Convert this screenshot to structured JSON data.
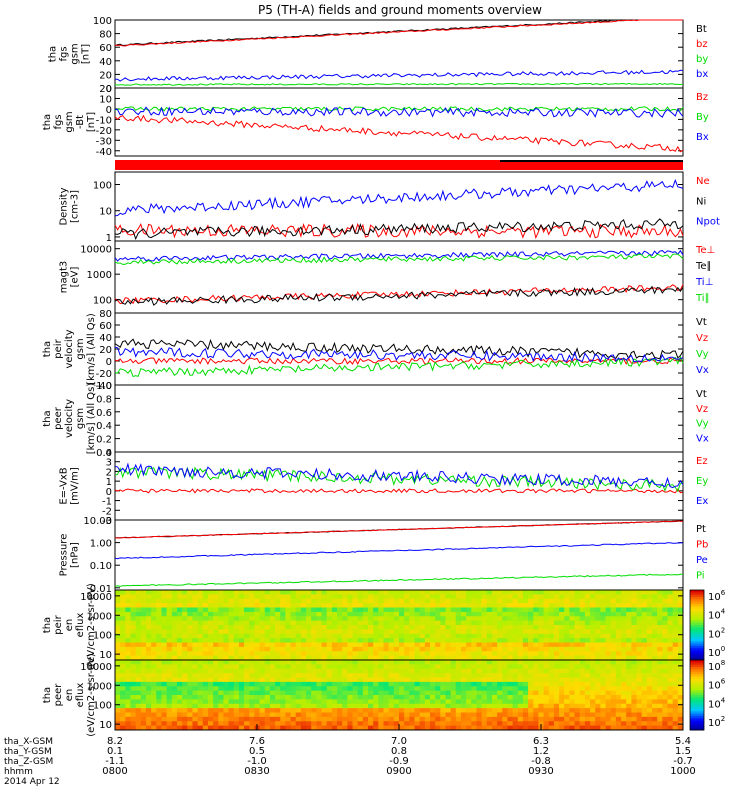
{
  "title": "P5 (TH-A) fields and ground moments overview",
  "colors": {
    "black": "#000000",
    "red": "#ff0000",
    "green": "#00dd00",
    "blue": "#0000ff"
  },
  "chart_data": {
    "type": "line",
    "xaxis": {
      "rows": [
        {
          "label": "tha_X-GSM",
          "values": [
            "8.2",
            "7.6",
            "7.0",
            "6.3",
            "5.4"
          ]
        },
        {
          "label": "tha_Y-GSM",
          "values": [
            "0.1",
            "0.5",
            "0.8",
            "1.2",
            "1.5"
          ]
        },
        {
          "label": "tha_Z-GSM",
          "values": [
            "-1.1",
            "-1.0",
            "-0.9",
            "-0.8",
            "-0.7"
          ]
        },
        {
          "label": "hhmm",
          "values": [
            "0800",
            "0830",
            "0900",
            "0930",
            "1000"
          ]
        }
      ],
      "date": "2014 Apr 12"
    },
    "panels": [
      {
        "id": "fgs_mag",
        "ylabel": [
          "tha",
          "fgs",
          "gsm",
          "[nT]"
        ],
        "ylim": [
          0,
          100
        ],
        "ticks": [
          "0",
          "20",
          "40",
          "60",
          "80",
          "100"
        ],
        "series": [
          {
            "name": "Bt",
            "color": "#000000",
            "start": 63,
            "end": 104,
            "noise": 1
          },
          {
            "name": "bz",
            "color": "#ff0000",
            "start": 62,
            "end": 103,
            "noise": 1
          },
          {
            "name": "by",
            "color": "#00dd00",
            "start": 5,
            "end": 6,
            "noise": 1
          },
          {
            "name": "bx",
            "color": "#0000ff",
            "start": 13,
            "end": 24,
            "noise": 3
          }
        ]
      },
      {
        "id": "fgs_comp",
        "ylabel": [
          "tha",
          "fgs",
          "gsm",
          "-Bt",
          "[nT]"
        ],
        "ylim": [
          -45,
          20
        ],
        "ticks": [
          "-40",
          "-30",
          "-20",
          "-10",
          "0",
          "10",
          "20"
        ],
        "series": [
          {
            "name": "Bz",
            "color": "#ff0000",
            "start": -8,
            "end": -38,
            "noise": 3
          },
          {
            "name": "By",
            "color": "#00dd00",
            "start": 0,
            "end": 0,
            "noise": 2
          },
          {
            "name": "Bx",
            "color": "#0000ff",
            "start": -2,
            "end": -4,
            "noise": 4
          }
        ]
      },
      {
        "id": "density",
        "ylabel": [
          "Density",
          "[cm-3]"
        ],
        "log": true,
        "ylim": [
          0.7,
          300
        ],
        "ticks": [
          "1",
          "10",
          "100"
        ],
        "series": [
          {
            "name": "Ne",
            "color": "#ff0000",
            "start": 1.8,
            "end": 1.6,
            "noise": 0.5
          },
          {
            "name": "Ni",
            "color": "#000000",
            "start": 1.3,
            "end": 3.2,
            "noise": 0.4
          },
          {
            "name": "Npot",
            "color": "#0000ff",
            "start": 10,
            "end": 100,
            "noise": 0.4
          }
        ]
      },
      {
        "id": "temperature",
        "ylabel": [
          "magt3",
          "[eV]"
        ],
        "log": true,
        "ylim": [
          30,
          20000
        ],
        "ticks": [
          "100",
          "1000",
          "10000"
        ],
        "series": [
          {
            "name": "Te⊥",
            "color": "#ff0000",
            "start": 90,
            "end": 300,
            "noise": 0.25
          },
          {
            "name": "Te∥",
            "color": "#000000",
            "start": 80,
            "end": 250,
            "noise": 0.3
          },
          {
            "name": "Ti⊥",
            "color": "#0000ff",
            "start": 4000,
            "end": 7000,
            "noise": 0.2
          },
          {
            "name": "Ti∥",
            "color": "#00dd00",
            "start": 3000,
            "end": 5000,
            "noise": 0.2
          }
        ]
      },
      {
        "id": "peir_velocity",
        "ylabel": [
          "tha",
          "peir",
          "velocity",
          "gsm",
          "[km/s] (All Qs)"
        ],
        "ylim": [
          -40,
          80
        ],
        "ticks": [
          "-40",
          "-20",
          "0",
          "20",
          "40",
          "60",
          "80"
        ],
        "series": [
          {
            "name": "Vt",
            "color": "#000000",
            "start": 30,
            "end": 10,
            "noise": 8
          },
          {
            "name": "Vz",
            "color": "#ff0000",
            "start": 0,
            "end": 0,
            "noise": 5
          },
          {
            "name": "Vy",
            "color": "#00dd00",
            "start": -20,
            "end": 0,
            "noise": 7
          },
          {
            "name": "Vx",
            "color": "#0000ff",
            "start": 15,
            "end": 5,
            "noise": 8
          }
        ]
      },
      {
        "id": "peer_velocity",
        "ylabel": [
          "tha",
          "peer",
          "velocity",
          "gsm",
          "[km/s] (All Qs)"
        ],
        "ylim": [
          0,
          1
        ],
        "ticks": [
          "0.0",
          "0.2",
          "0.4",
          "0.6",
          "0.8",
          "1.0"
        ],
        "series": [
          {
            "name": "Vt",
            "color": "#000000"
          },
          {
            "name": "Vz",
            "color": "#ff0000"
          },
          {
            "name": "Vy",
            "color": "#00dd00"
          },
          {
            "name": "Vx",
            "color": "#0000ff"
          }
        ]
      },
      {
        "id": "efield",
        "ylabel": [
          "E=-VxB",
          "[mV/m]"
        ],
        "ylim": [
          -3,
          4
        ],
        "ticks": [
          "-3",
          "-2",
          "-1",
          "0",
          "1",
          "2",
          "3",
          "4"
        ],
        "series": [
          {
            "name": "Ez",
            "color": "#ff0000",
            "start": 0,
            "end": 0,
            "noise": 0.2
          },
          {
            "name": "Ey",
            "color": "#00dd00",
            "start": 2,
            "end": 0.5,
            "noise": 0.6
          },
          {
            "name": "Ex",
            "color": "#0000ff",
            "start": 2.2,
            "end": 0.8,
            "noise": 0.6
          }
        ]
      },
      {
        "id": "pressure",
        "ylabel": [
          "Pressure",
          "[nPa]"
        ],
        "log": true,
        "ylim": [
          0.008,
          10
        ],
        "ticks": [
          "0.01",
          "0.10",
          "1.00",
          "10.00"
        ],
        "series": [
          {
            "name": "Pt",
            "color": "#000000",
            "start": 1.6,
            "end": 9,
            "noise": 0.03
          },
          {
            "name": "Pb",
            "color": "#ff0000",
            "start": 1.6,
            "end": 9,
            "noise": 0.03
          },
          {
            "name": "Pe",
            "color": "#0000ff",
            "start": 0.2,
            "end": 1.0,
            "noise": 0.05
          },
          {
            "name": "Pi",
            "color": "#00dd00",
            "start": 0.012,
            "end": 0.04,
            "noise": 0.05
          }
        ]
      },
      {
        "id": "peir_spec",
        "type": "heatmap",
        "ylabel": [
          "tha",
          "peir",
          "en",
          "eflux",
          "(eV/cm2-s-sr-eV)"
        ],
        "ylim": [
          5,
          20000
        ],
        "log": true,
        "ticks": [
          "10",
          "100",
          "1000",
          "10000"
        ],
        "colorbar": {
          "ticks": [
            "10^0",
            "10^2",
            "10^4",
            "10^6"
          ]
        }
      },
      {
        "id": "peer_spec",
        "type": "heatmap",
        "ylabel": [
          "tha",
          "peer",
          "en",
          "eflux",
          "(eV/cm2-s-sr-eV)"
        ],
        "ylim": [
          5,
          20000
        ],
        "log": true,
        "ticks": [
          "10",
          "100",
          "1000",
          "10000"
        ],
        "colorbar": {
          "ticks": [
            "10^2",
            "10^4",
            "10^6",
            "10^8"
          ]
        }
      }
    ]
  }
}
